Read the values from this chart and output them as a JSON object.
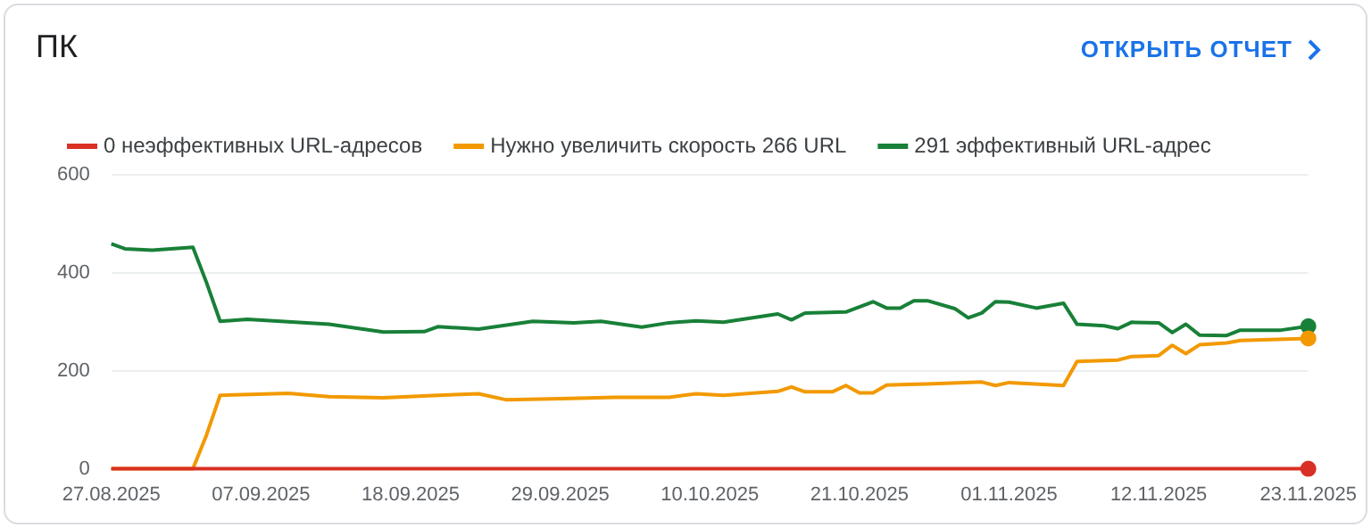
{
  "chart_data": {
    "type": "line",
    "title": "ПК",
    "annotations": [
      "ОТКРЫТЬ ОТЧЕТ"
    ],
    "series": [
      {
        "name": "0 неэффективных URL-адресов",
        "color": "#d93025",
        "x": [
          "2025-08-27",
          "2025-11-23"
        ],
        "values": [
          0,
          0
        ]
      },
      {
        "name": "Нужно увеличить скорость 266 URL",
        "color": "#f29900",
        "x": [
          "2025-08-27",
          "2025-09-02",
          "2025-09-03",
          "2025-09-04",
          "2025-09-09",
          "2025-09-12",
          "2025-09-16",
          "2025-09-20",
          "2025-09-23",
          "2025-09-25",
          "2025-09-29",
          "2025-10-03",
          "2025-10-07",
          "2025-10-09",
          "2025-10-11",
          "2025-10-15",
          "2025-10-16",
          "2025-10-17",
          "2025-10-19",
          "2025-10-20",
          "2025-10-21",
          "2025-10-22",
          "2025-10-23",
          "2025-10-26",
          "2025-10-30",
          "2025-10-31",
          "2025-11-01",
          "2025-11-05",
          "2025-11-06",
          "2025-11-09",
          "2025-11-10",
          "2025-11-12",
          "2025-11-13",
          "2025-11-14",
          "2025-11-15",
          "2025-11-17",
          "2025-11-18",
          "2025-11-23"
        ],
        "values": [
          0,
          0,
          69,
          150,
          154,
          147,
          145,
          150,
          153,
          141,
          143,
          146,
          146,
          153,
          150,
          158,
          167,
          157,
          157,
          170,
          155,
          155,
          171,
          173,
          177,
          170,
          176,
          170,
          219,
          222,
          229,
          231,
          252,
          235,
          253,
          257,
          262,
          266
        ]
      },
      {
        "name": "291 эффективный URL-адрес",
        "color": "#188038",
        "x": [
          "2025-08-27",
          "2025-08-28",
          "2025-08-30",
          "2025-09-02",
          "2025-09-03",
          "2025-09-04",
          "2025-09-06",
          "2025-09-09",
          "2025-09-12",
          "2025-09-16",
          "2025-09-19",
          "2025-09-20",
          "2025-09-23",
          "2025-09-27",
          "2025-09-30",
          "2025-10-02",
          "2025-10-05",
          "2025-10-07",
          "2025-10-09",
          "2025-10-11",
          "2025-10-15",
          "2025-10-16",
          "2025-10-17",
          "2025-10-20",
          "2025-10-22",
          "2025-10-23",
          "2025-10-24",
          "2025-10-25",
          "2025-10-26",
          "2025-10-28",
          "2025-10-29",
          "2025-10-30",
          "2025-10-31",
          "2025-11-01",
          "2025-11-03",
          "2025-11-05",
          "2025-11-06",
          "2025-11-08",
          "2025-11-09",
          "2025-11-10",
          "2025-11-12",
          "2025-11-13",
          "2025-11-14",
          "2025-11-15",
          "2025-11-17",
          "2025-11-18",
          "2025-11-21",
          "2025-11-23"
        ],
        "values": [
          459,
          449,
          446,
          452,
          380,
          301,
          305,
          300,
          295,
          279,
          280,
          290,
          285,
          301,
          298,
          301,
          289,
          298,
          302,
          299,
          316,
          304,
          318,
          320,
          341,
          328,
          328,
          343,
          343,
          327,
          308,
          318,
          341,
          340,
          328,
          338,
          295,
          292,
          286,
          299,
          298,
          278,
          295,
          273,
          272,
          283,
          283,
          291
        ]
      }
    ],
    "xlim": [
      "2025-08-27",
      "2025-11-23"
    ],
    "xticks": [
      {
        "value": "2025-08-27",
        "label": "27.08.2025"
      },
      {
        "value": "2025-09-07",
        "label": "07.09.2025"
      },
      {
        "value": "2025-09-18",
        "label": "18.09.2025"
      },
      {
        "value": "2025-09-29",
        "label": "29.09.2025"
      },
      {
        "value": "2025-10-10",
        "label": "10.10.2025"
      },
      {
        "value": "2025-10-21",
        "label": "21.10.2025"
      },
      {
        "value": "2025-11-01",
        "label": "01.11.2025"
      },
      {
        "value": "2025-11-12",
        "label": "12.11.2025"
      },
      {
        "value": "2025-11-23",
        "label": "23.11.2025"
      }
    ],
    "ylim": [
      0,
      600
    ],
    "yticks": [
      0,
      200,
      400,
      600
    ],
    "grid": "y",
    "legend": "top left"
  }
}
